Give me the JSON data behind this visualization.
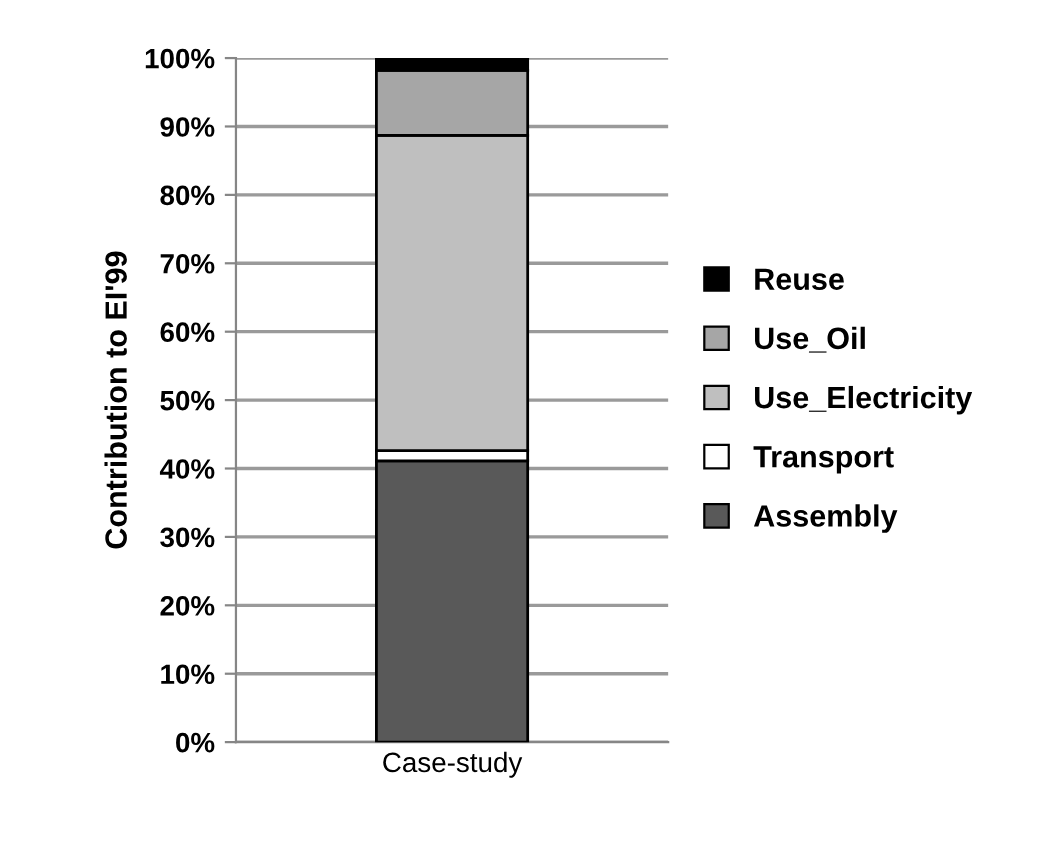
{
  "chart_data": {
    "type": "bar",
    "stacked": true,
    "ylabel": "Contribution to EI'99",
    "categories": [
      "Case-study"
    ],
    "series": [
      {
        "name": "Assembly",
        "color": "#595959",
        "values": [
          41.1
        ]
      },
      {
        "name": "Transport",
        "color": "#ffffff",
        "values": [
          1.5
        ]
      },
      {
        "name": "Use_Electricity",
        "color": "#bfbfbf",
        "values": [
          46.1
        ]
      },
      {
        "name": "Use_Oil",
        "color": "#a6a6a6",
        "values": [
          9.5
        ]
      },
      {
        "name": "Reuse",
        "color": "#000000",
        "values": [
          1.8
        ]
      }
    ],
    "ylim": [
      0,
      100
    ],
    "yticks": [
      {
        "value": 0,
        "label": "0%"
      },
      {
        "value": 10,
        "label": "10%"
      },
      {
        "value": 20,
        "label": "20%"
      },
      {
        "value": 30,
        "label": "30%"
      },
      {
        "value": 40,
        "label": "40%"
      },
      {
        "value": 50,
        "label": "50%"
      },
      {
        "value": 60,
        "label": "60%"
      },
      {
        "value": 70,
        "label": "70%"
      },
      {
        "value": 80,
        "label": "80%"
      },
      {
        "value": 90,
        "label": "90%"
      },
      {
        "value": 100,
        "label": "100%"
      }
    ],
    "grid": "y",
    "legend": "right"
  }
}
